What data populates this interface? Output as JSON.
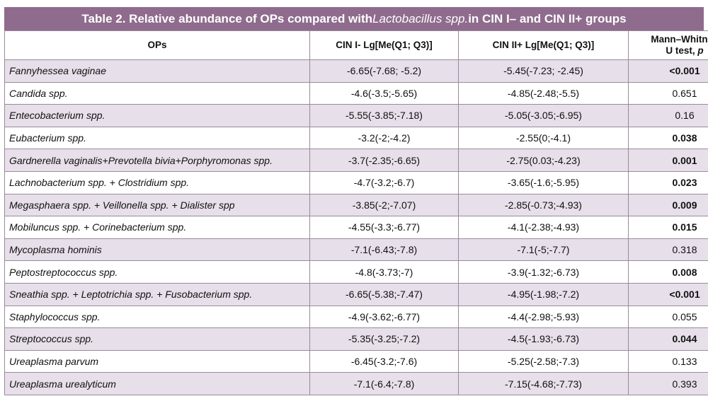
{
  "title": {
    "prefix": "Table 2. Relative abundance of OPs compared with ",
    "italic": "Lactobacillus spp.",
    "suffix": " in CIN I– and CIN II+ groups"
  },
  "headers": {
    "ops": "OPs",
    "cin1": "CIN I- Lg[Me(Q1; Q3)]",
    "cin2": "CIN II+ Lg[Me(Q1; Q3)]",
    "mw_line1": "Mann–Whitney",
    "mw_line2": "U test, ",
    "mw_p": "p"
  },
  "rows": [
    {
      "op": "Fannyhessea vaginae",
      "cin1": "-6.65(-7.68; -5.2)",
      "cin2": "-5.45(-7.23; -2.45)",
      "p": "<0.001",
      "bold": true
    },
    {
      "op": "Candida spp.",
      "cin1": "-4.6(-3.5;-5.65)",
      "cin2": "-4.85(-2.48;-5.5)",
      "p": "0.651",
      "bold": false
    },
    {
      "op": "Entecobacterium spp.",
      "cin1": "-5.55(-3.85;-7.18)",
      "cin2": "-5.05(-3.05;-6.95)",
      "p": "0.16",
      "bold": false
    },
    {
      "op": "Eubacterium spp.",
      "cin1": "-3.2(-2;-4.2)",
      "cin2": "-2.55(0;-4.1)",
      "p": "0.038",
      "bold": true
    },
    {
      "op": "Gardnerella vaginalis+Prevotella bivia+Porphyromonas spp.",
      "cin1": "-3.7(-2.35;-6.65)",
      "cin2": "-2.75(0.03;-4.23)",
      "p": "0.001",
      "bold": true
    },
    {
      "op": "Lachnobacterium spp. + Clostridium spp.",
      "cin1": "-4.7(-3.2;-6.7)",
      "cin2": "-3.65(-1.6;-5.95)",
      "p": "0.023",
      "bold": true
    },
    {
      "op": "Megasphaera spp. + Veillonella spp. + Dialister spp",
      "cin1": "-3.85(-2;-7.07)",
      "cin2": "-2.85(-0.73;-4.93)",
      "p": "0.009",
      "bold": true
    },
    {
      "op": "Mobiluncus spp. + Corinebacterium spp.",
      "cin1": "-4.55(-3.3;-6.77)",
      "cin2": "-4.1(-2.38;-4.93)",
      "p": "0.015",
      "bold": true
    },
    {
      "op": "Mycoplasma hominis",
      "cin1": "-7.1(-6.43;-7.8)",
      "cin2": "-7.1(-5;-7.7)",
      "p": "0.318",
      "bold": false
    },
    {
      "op": "Peptostreptococcus spp.",
      "cin1": "-4.8(-3.73;-7)",
      "cin2": "-3.9(-1.32;-6.73)",
      "p": "0.008",
      "bold": true
    },
    {
      "op": "Sneathia spp. + Leptotrichia spp. + Fusobacterium spp.",
      "cin1": "-6.65(-5.38;-7.47)",
      "cin2": "-4.95(-1.98;-7.2)",
      "p": "<0.001",
      "bold": true
    },
    {
      "op": "Staphylococcus spp.",
      "cin1": "-4.9(-3.62;-6.77)",
      "cin2": "-4.4(-2.98;-5.93)",
      "p": "0.055",
      "bold": false
    },
    {
      "op": "Streptococcus spp.",
      "cin1": "-5.35(-3.25;-7.2)",
      "cin2": "-4.5(-1.93;-6.73)",
      "p": "0.044",
      "bold": true
    },
    {
      "op": "Ureaplasma parvum",
      "cin1": "-6.45(-3.2;-7.6)",
      "cin2": "-5.25(-2.58;-7.3)",
      "p": "0.133",
      "bold": false
    },
    {
      "op": "Ureaplasma urealyticum",
      "cin1": "-7.1(-6.4;-7.8)",
      "cin2": "-7.15(-4.68;-7.73)",
      "p": "0.393",
      "bold": false
    }
  ]
}
